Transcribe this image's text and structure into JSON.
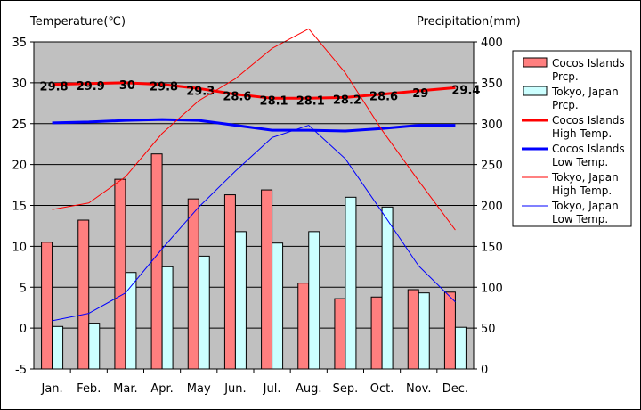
{
  "chart_data": {
    "type": "bar",
    "categories": [
      "Jan.",
      "Feb.",
      "Mar.",
      "Apr.",
      "May",
      "Jun.",
      "Jul.",
      "Aug.",
      "Sep.",
      "Oct.",
      "Nov.",
      "Dec."
    ],
    "left_axis": {
      "label": "Temperature(℃)",
      "ylim": [
        -5,
        35
      ],
      "ticks": [
        35,
        30,
        25,
        20,
        15,
        10,
        5,
        0,
        -5
      ]
    },
    "right_axis": {
      "label": "Precipitation(mm)",
      "ylim": [
        0,
        400
      ],
      "ticks": [
        400,
        350,
        300,
        250,
        200,
        150,
        100,
        50,
        0
      ]
    },
    "grid": true,
    "legend_position": "right",
    "series": [
      {
        "name": "Cocos Islands Prcp.",
        "kind": "bar",
        "axis": "right",
        "color": "#ff7f7f",
        "values": [
          155,
          182,
          232,
          263,
          208,
          213,
          219,
          105,
          86,
          88,
          97,
          94
        ]
      },
      {
        "name": "Tokyo, Japan Prcp.",
        "kind": "bar",
        "axis": "right",
        "color": "#ccffff",
        "values": [
          52,
          56,
          118,
          125,
          138,
          168,
          154,
          168,
          210,
          198,
          93,
          51
        ]
      },
      {
        "name": "Cocos Islands High Temp.",
        "kind": "line",
        "axis": "left",
        "color": "#ff0000",
        "width": 3,
        "values": [
          29.8,
          29.9,
          30,
          29.8,
          29.3,
          28.6,
          28.1,
          28.1,
          28.2,
          28.6,
          29,
          29.4
        ],
        "labels": [
          "29.8",
          "29.9",
          "30",
          "29.8",
          "29.3",
          "28.6",
          "28.1",
          "28.1",
          "28.2",
          "28.6",
          "29",
          "29.4"
        ]
      },
      {
        "name": "Cocos Islands Low Temp.",
        "kind": "line",
        "axis": "left",
        "color": "#0000ff",
        "width": 3,
        "values": [
          25.1,
          25.2,
          25.4,
          25.5,
          25.4,
          24.8,
          24.2,
          24.2,
          24.1,
          24.4,
          24.8,
          24.8
        ]
      },
      {
        "name": "Tokyo, Japan High Temp.",
        "kind": "line",
        "axis": "left",
        "color": "#ff0000",
        "width": 1,
        "values": [
          14.5,
          15.3,
          18.5,
          23.8,
          27.8,
          30.5,
          34.2,
          36.6,
          31.2,
          24.2,
          18,
          12
        ]
      },
      {
        "name": "Tokyo, Japan Low Temp.",
        "kind": "line",
        "axis": "left",
        "color": "#0000ff",
        "width": 1,
        "values": [
          0.9,
          1.8,
          4.3,
          9.7,
          14.8,
          19.2,
          23.3,
          24.8,
          20.7,
          14.2,
          7.6,
          3.2
        ]
      }
    ],
    "legend": [
      {
        "text": [
          "Cocos Islands",
          "Prcp."
        ],
        "swatch": "bar",
        "color": "#ff7f7f"
      },
      {
        "text": [
          "Tokyo, Japan",
          "Prcp."
        ],
        "swatch": "bar",
        "color": "#ccffff"
      },
      {
        "text": [
          "Cocos Islands",
          "High Temp."
        ],
        "swatch": "line",
        "color": "#ff0000",
        "width": 3
      },
      {
        "text": [
          "Cocos Islands",
          "Low Temp."
        ],
        "swatch": "line",
        "color": "#0000ff",
        "width": 3
      },
      {
        "text": [
          "Tokyo, Japan",
          "High Temp."
        ],
        "swatch": "line",
        "color": "#ff0000",
        "width": 1
      },
      {
        "text": [
          "Tokyo, Japan",
          "Low Temp."
        ],
        "swatch": "line",
        "color": "#0000ff",
        "width": 1
      }
    ],
    "plot_background": "#c0c0c0"
  }
}
